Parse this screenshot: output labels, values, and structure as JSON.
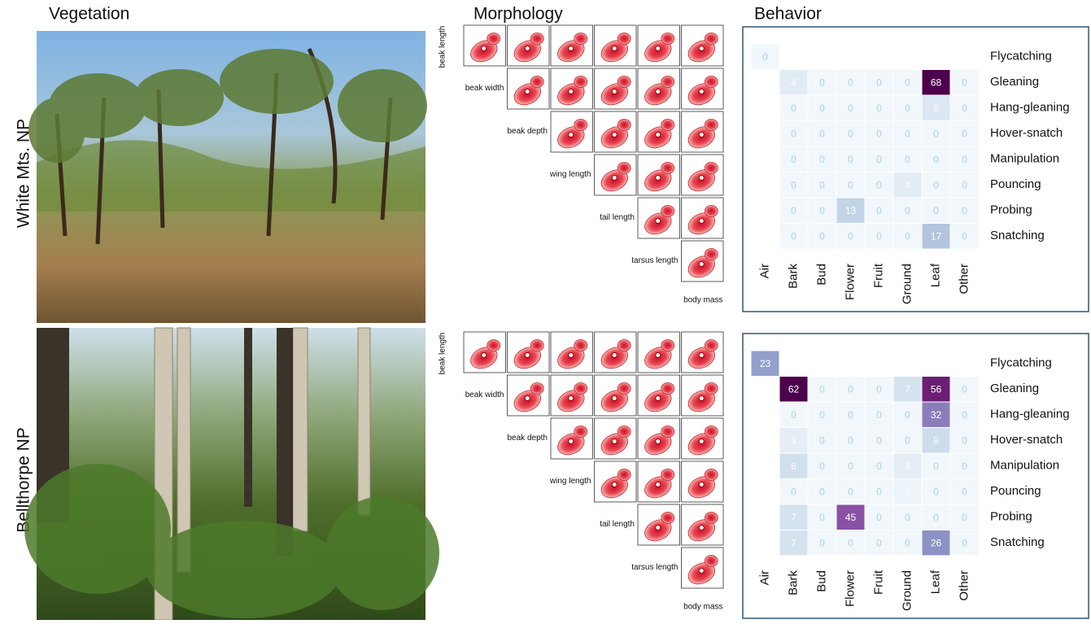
{
  "headers": [
    "Vegetation",
    "Morphology",
    "Behavior"
  ],
  "sites": [
    "White Mts. NP",
    "Bellthorpe NP"
  ],
  "morphology": {
    "traits": [
      "beak length",
      "beak width",
      "beak depth",
      "wing length",
      "tail length",
      "tarsus length",
      "body mass"
    ]
  },
  "chart_data": [
    {
      "type": "heatmap",
      "x_categories": [
        "Air",
        "Bark",
        "Bud",
        "Flower",
        "Fruit",
        "Ground",
        "Leaf",
        "Other"
      ],
      "y_categories": [
        "Flycatching",
        "Gleaning",
        "Hang-gleaning",
        "Hover-snatch",
        "Manipulation",
        "Pouncing",
        "Probing",
        "Snatching"
      ],
      "colors": [
        "#f1f7fb",
        "#bfd3e6",
        "#8c96c6",
        "#8c6bb1",
        "#88419d",
        "#4d004b"
      ],
      "values": [
        [
          0,
          null,
          null,
          null,
          null,
          null,
          null,
          null
        ],
        [
          null,
          4,
          0,
          0,
          0,
          0,
          68,
          0
        ],
        [
          null,
          0,
          0,
          0,
          0,
          0,
          6,
          0
        ],
        [
          null,
          0,
          0,
          0,
          0,
          0,
          0,
          0
        ],
        [
          null,
          0,
          0,
          0,
          0,
          0,
          0,
          0
        ],
        [
          null,
          0,
          0,
          0,
          0,
          4,
          0,
          0
        ],
        [
          null,
          0,
          0,
          13,
          0,
          0,
          0,
          0
        ],
        [
          null,
          0,
          0,
          0,
          0,
          0,
          17,
          0
        ]
      ]
    },
    {
      "type": "heatmap",
      "x_categories": [
        "Air",
        "Bark",
        "Bud",
        "Flower",
        "Fruit",
        "Ground",
        "Leaf",
        "Other"
      ],
      "y_categories": [
        "Flycatching",
        "Gleaning",
        "Hang-gleaning",
        "Hover-snatch",
        "Manipulation",
        "Pouncing",
        "Probing",
        "Snatching"
      ],
      "colors": [
        "#f1f7fb",
        "#bfd3e6",
        "#8c96c6",
        "#8c6bb1",
        "#88419d",
        "#4d004b"
      ],
      "values": [
        [
          23,
          null,
          null,
          null,
          null,
          null,
          null,
          null
        ],
        [
          null,
          62,
          0,
          0,
          0,
          7,
          56,
          0
        ],
        [
          null,
          0,
          0,
          0,
          0,
          0,
          32,
          0
        ],
        [
          null,
          3,
          0,
          0,
          0,
          0,
          9,
          0
        ],
        [
          null,
          8,
          0,
          0,
          0,
          3,
          0,
          0
        ],
        [
          null,
          0,
          0,
          0,
          0,
          1,
          0,
          0
        ],
        [
          null,
          7,
          0,
          45,
          0,
          0,
          0,
          0
        ],
        [
          null,
          7,
          0,
          0,
          0,
          0,
          26,
          0
        ]
      ]
    }
  ]
}
